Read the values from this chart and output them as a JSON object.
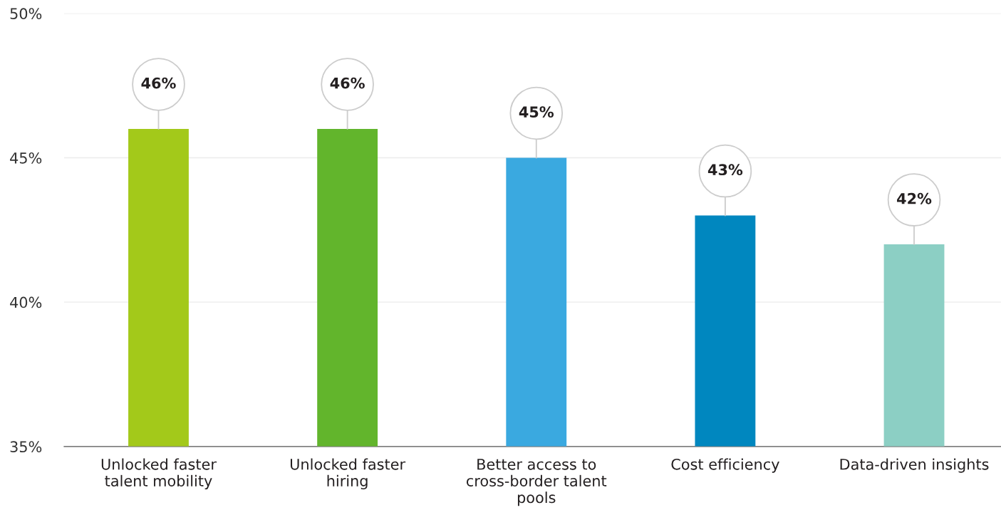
{
  "chart_data": {
    "type": "bar",
    "categories": [
      "Unlocked faster talent mobility",
      "Unlocked faster hiring",
      "Better access to cross-border talent pools",
      "Cost efficiency",
      "Data-driven insights"
    ],
    "values": [
      46,
      46,
      45,
      43,
      42
    ],
    "value_labels": [
      "46%",
      "46%",
      "45%",
      "43%",
      "42%"
    ],
    "colors": [
      "#a3c91a",
      "#62b52c",
      "#3aa9e0",
      "#0087bf",
      "#8ccfc4"
    ],
    "ylim": [
      35,
      50
    ],
    "yticks": [
      {
        "value": 35,
        "label": "35%"
      },
      {
        "value": 40,
        "label": "40%"
      },
      {
        "value": 45,
        "label": "45%"
      },
      {
        "value": 50,
        "label": "50%"
      }
    ],
    "grid": "y",
    "legend": false
  }
}
